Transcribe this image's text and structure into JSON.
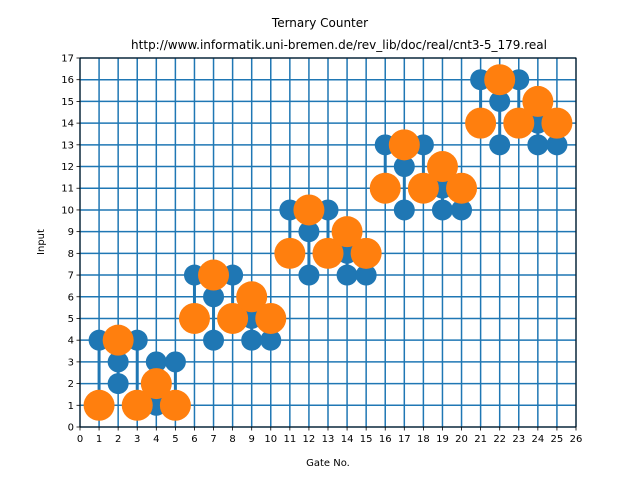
{
  "chart_data": {
    "type": "scatter",
    "title": "Ternary Counter",
    "subtitle": "http://www.informatik.uni-bremen.de/rev_lib/doc/real/cnt3-5_179.real",
    "xlabel": "Gate No.",
    "ylabel": "Input",
    "xlim": [
      0,
      26
    ],
    "ylim": [
      0,
      17
    ],
    "xticks": [
      "0",
      "1",
      "2",
      "3",
      "4",
      "5",
      "6",
      "7",
      "8",
      "9",
      "10",
      "11",
      "12",
      "13",
      "14",
      "15",
      "16",
      "17",
      "18",
      "19",
      "20",
      "21",
      "22",
      "23",
      "24",
      "25",
      "26"
    ],
    "yticks": [
      "0",
      "1",
      "2",
      "3",
      "4",
      "5",
      "6",
      "7",
      "8",
      "9",
      "10",
      "11",
      "12",
      "13",
      "14",
      "15",
      "16",
      "17"
    ],
    "grid": true,
    "colors": {
      "control": "#1f77b4",
      "target": "#ff7f0e",
      "grid": "#1f77b4"
    },
    "gates": [
      {
        "gate": 1,
        "controls": [
          4
        ],
        "targets": [
          1
        ]
      },
      {
        "gate": 2,
        "controls": [
          2,
          3
        ],
        "targets": [
          4
        ]
      },
      {
        "gate": 3,
        "controls": [
          4
        ],
        "targets": [
          1
        ]
      },
      {
        "gate": 4,
        "controls": [
          1,
          3
        ],
        "targets": [
          2
        ]
      },
      {
        "gate": 5,
        "controls": [
          3
        ],
        "targets": [
          1
        ]
      },
      {
        "gate": 6,
        "controls": [
          7
        ],
        "targets": [
          5
        ]
      },
      {
        "gate": 7,
        "controls": [
          4,
          6
        ],
        "targets": [
          7
        ]
      },
      {
        "gate": 8,
        "controls": [
          7
        ],
        "targets": [
          5
        ]
      },
      {
        "gate": 9,
        "controls": [
          4,
          5
        ],
        "targets": [
          6
        ]
      },
      {
        "gate": 10,
        "controls": [
          4
        ],
        "targets": [
          5
        ]
      },
      {
        "gate": 11,
        "controls": [
          10
        ],
        "targets": [
          8
        ]
      },
      {
        "gate": 12,
        "controls": [
          7,
          9
        ],
        "targets": [
          10
        ]
      },
      {
        "gate": 13,
        "controls": [
          10
        ],
        "targets": [
          8
        ]
      },
      {
        "gate": 14,
        "controls": [
          7,
          8
        ],
        "targets": [
          9
        ]
      },
      {
        "gate": 15,
        "controls": [
          7
        ],
        "targets": [
          8
        ]
      },
      {
        "gate": 16,
        "controls": [
          13
        ],
        "targets": [
          11
        ]
      },
      {
        "gate": 17,
        "controls": [
          10,
          12
        ],
        "targets": [
          13
        ]
      },
      {
        "gate": 18,
        "controls": [
          13
        ],
        "targets": [
          11
        ]
      },
      {
        "gate": 19,
        "controls": [
          10,
          11
        ],
        "targets": [
          12
        ]
      },
      {
        "gate": 20,
        "controls": [
          10
        ],
        "targets": [
          11
        ]
      },
      {
        "gate": 21,
        "controls": [
          16
        ],
        "targets": [
          14
        ]
      },
      {
        "gate": 22,
        "controls": [
          13,
          15
        ],
        "targets": [
          16
        ]
      },
      {
        "gate": 23,
        "controls": [
          16
        ],
        "targets": [
          14
        ]
      },
      {
        "gate": 24,
        "controls": [
          13,
          14
        ],
        "targets": [
          15
        ]
      },
      {
        "gate": 25,
        "controls": [
          13
        ],
        "targets": [
          14
        ]
      }
    ]
  }
}
